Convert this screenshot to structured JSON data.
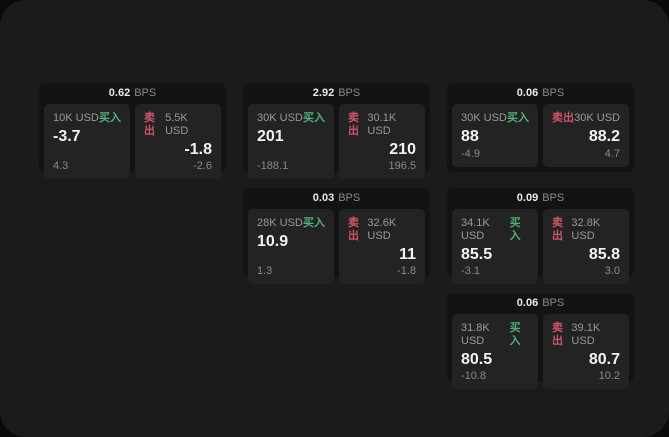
{
  "labels": {
    "bps": "BPS",
    "buy": "买入",
    "sell": "卖出"
  },
  "colors": {
    "page_bg": "#0a0a0a",
    "window_bg": "#1b1b1b",
    "card_bg": "#131313",
    "panel_bg": "#232323",
    "text_primary": "#f2f2f2",
    "text_muted": "#8a8a8a",
    "buy_green": "#4db378",
    "sell_red": "#cf5568"
  },
  "cards": [
    {
      "bps": "0.62",
      "buy": {
        "size": "10K USD",
        "value": "-3.7",
        "sub": "4.3"
      },
      "sell": {
        "size": "5.5K USD",
        "value": "-1.8",
        "sub": "-2.6"
      }
    },
    {
      "bps": "2.92",
      "buy": {
        "size": "30K USD",
        "value": "201",
        "sub": "-188.1"
      },
      "sell": {
        "size": "30.1K USD",
        "value": "210",
        "sub": "196.5"
      }
    },
    {
      "bps": "0.06",
      "buy": {
        "size": "30K USD",
        "value": "88",
        "sub": "-4.9"
      },
      "sell": {
        "size": "30K USD",
        "value": "88.2",
        "sub": "4.7"
      }
    },
    {
      "bps": "0.03",
      "buy": {
        "size": "28K USD",
        "value": "10.9",
        "sub": "1.3"
      },
      "sell": {
        "size": "32.6K USD",
        "value": "11",
        "sub": "-1.8"
      }
    },
    {
      "bps": "0.09",
      "buy": {
        "size": "34.1K USD",
        "value": "85.5",
        "sub": "-3.1"
      },
      "sell": {
        "size": "32.8K USD",
        "value": "85.8",
        "sub": "3.0"
      }
    },
    {
      "bps": "0.06",
      "buy": {
        "size": "31.8K USD",
        "value": "80.5",
        "sub": "-10.8"
      },
      "sell": {
        "size": "39.1K USD",
        "value": "80.7",
        "sub": "10.2"
      }
    }
  ]
}
